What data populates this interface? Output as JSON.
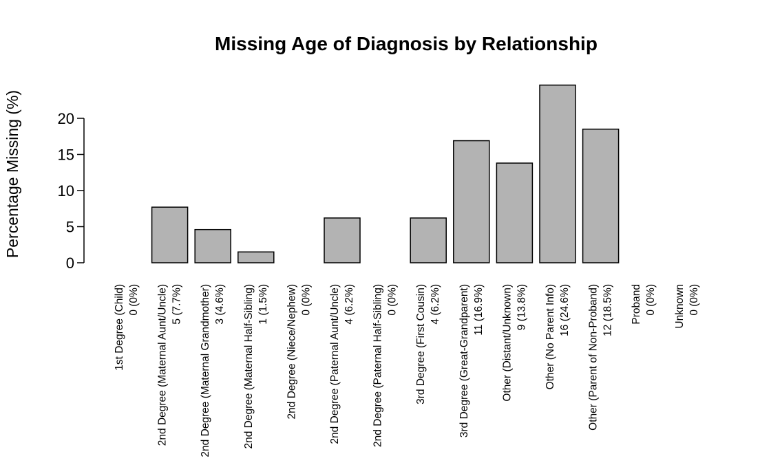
{
  "chart_data": {
    "type": "bar",
    "title": "Missing Age of Diagnosis by Relationship",
    "xlabel": "",
    "ylabel": "Percentage Missing (%)",
    "ylim": [
      0,
      25
    ],
    "yticks": [
      0,
      5,
      10,
      15,
      20
    ],
    "grid": false,
    "bar_color": "#b3b3b3",
    "bar_stroke": "#000000",
    "categories": [
      "1st Degree (Child)",
      "2nd Degree (Maternal Aunt/Uncle)",
      "2nd Degree (Maternal Grandmother)",
      "2nd Degree (Maternal Half-Sibling)",
      "2nd Degree (Niece/Nephew)",
      "2nd Degree (Paternal Aunt/Uncle)",
      "2nd Degree (Paternal Half-Sibling)",
      "3rd Degree (First Cousin)",
      "3rd Degree (Great-Grandparent)",
      "Other (Distant/Unknown)",
      "Other (No Parent Info)",
      "Other (Parent of Non-Proband)",
      "Proband",
      "Unknown"
    ],
    "count_labels": [
      "0 (0%)",
      "5 (7.7%)",
      "3 (4.6%)",
      "1 (1.5%)",
      "0 (0%)",
      "4 (6.2%)",
      "0 (0%)",
      "4 (6.2%)",
      "11 (16.9%)",
      "9 (13.8%)",
      "16 (24.6%)",
      "12 (18.5%)",
      "0 (0%)",
      "0 (0%)"
    ],
    "values": [
      0,
      7.7,
      4.6,
      1.5,
      0,
      6.2,
      0,
      6.2,
      16.9,
      13.8,
      24.6,
      18.5,
      0,
      0
    ]
  }
}
